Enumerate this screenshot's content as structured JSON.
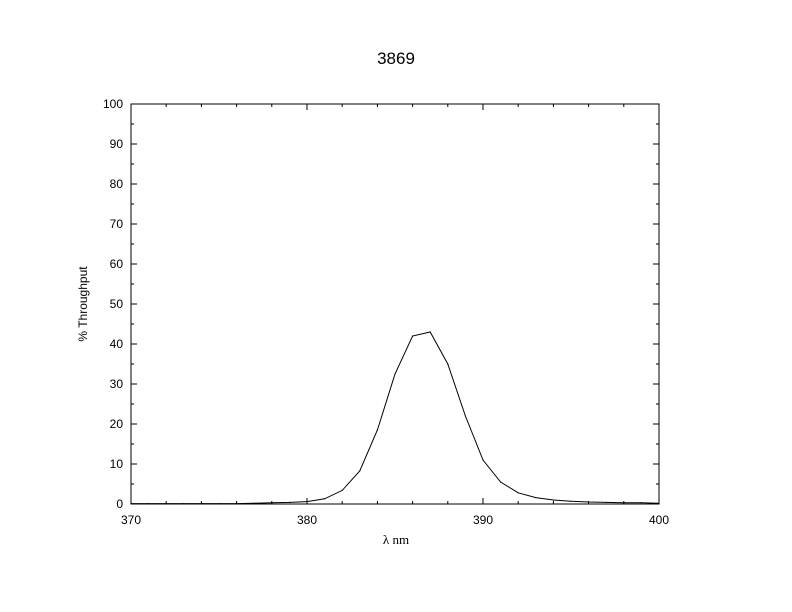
{
  "chart_data": {
    "type": "line",
    "title": "3869",
    "xlabel": "λ nm",
    "ylabel": "% Throughput",
    "xlim": [
      370,
      400
    ],
    "ylim": [
      0,
      100
    ],
    "x_ticks": [
      370,
      380,
      390,
      400
    ],
    "y_ticks": [
      0,
      10,
      20,
      30,
      40,
      50,
      60,
      70,
      80,
      90,
      100
    ],
    "x_tick_labels": [
      "370",
      "380",
      "390",
      "400"
    ],
    "y_tick_labels": [
      "0",
      "10",
      "20",
      "30",
      "40",
      "50",
      "60",
      "70",
      "80",
      "90",
      "100"
    ],
    "grid": false,
    "line_color": "#000000",
    "series": [
      {
        "x": [
          370,
          371,
          372,
          373,
          374,
          375,
          376,
          377,
          378,
          379,
          380,
          381,
          382,
          383,
          384,
          385,
          386,
          387,
          388,
          389,
          390,
          391,
          392,
          393,
          394,
          395,
          396,
          397,
          398,
          399,
          400
        ],
        "y": [
          0.1,
          0.1,
          0.1,
          0.1,
          0.1,
          0.1,
          0.1,
          0.2,
          0.3,
          0.4,
          0.6,
          1.3,
          3.4,
          8.3,
          18.5,
          32.5,
          42.0,
          43.0,
          35.0,
          22.0,
          11.0,
          5.5,
          2.8,
          1.6,
          1.0,
          0.7,
          0.5,
          0.4,
          0.3,
          0.3,
          0.2
        ]
      }
    ]
  }
}
